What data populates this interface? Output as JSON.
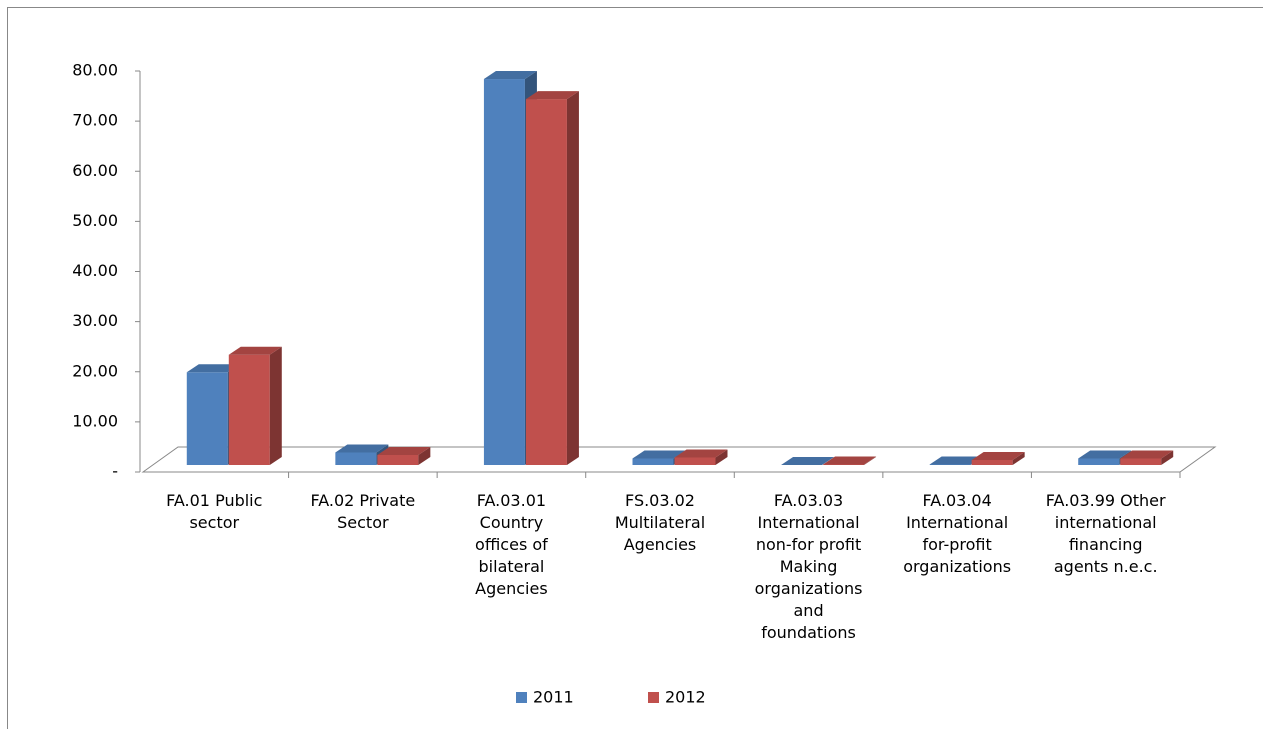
{
  "chart_data": {
    "type": "bar3d",
    "categories": [
      "FA.01 Public sector",
      "FA.02 Private Sector",
      "FA.03.01 Country offices of bilateral Agencies",
      "FS.03.02 Multilateral Agencies",
      "FA.03.03 International non-for profit Making organizations and foundations",
      "FA.03.04 International for-profit organizations",
      "FA.03.99 Other international financing agents n.e.c."
    ],
    "series": [
      {
        "name": "2011",
        "color": "#4f81bd",
        "values": [
          18.5,
          2.5,
          77,
          1.3,
          0,
          0.1,
          1.3
        ]
      },
      {
        "name": "2012",
        "color": "#c0504d",
        "values": [
          22,
          2,
          73,
          1.5,
          0.1,
          1,
          1.3
        ]
      }
    ],
    "ylim": [
      0,
      80
    ],
    "yticks": [
      {
        "value": 0,
        "label": "-"
      },
      {
        "value": 10,
        "label": "10.00"
      },
      {
        "value": 20,
        "label": "20.00"
      },
      {
        "value": 30,
        "label": "30.00"
      },
      {
        "value": 40,
        "label": "40.00"
      },
      {
        "value": 50,
        "label": "50.00"
      },
      {
        "value": 60,
        "label": "60.00"
      },
      {
        "value": 70,
        "label": "70.00"
      },
      {
        "value": 80,
        "label": "80.00"
      }
    ],
    "grid": false,
    "legend": "bottom"
  }
}
